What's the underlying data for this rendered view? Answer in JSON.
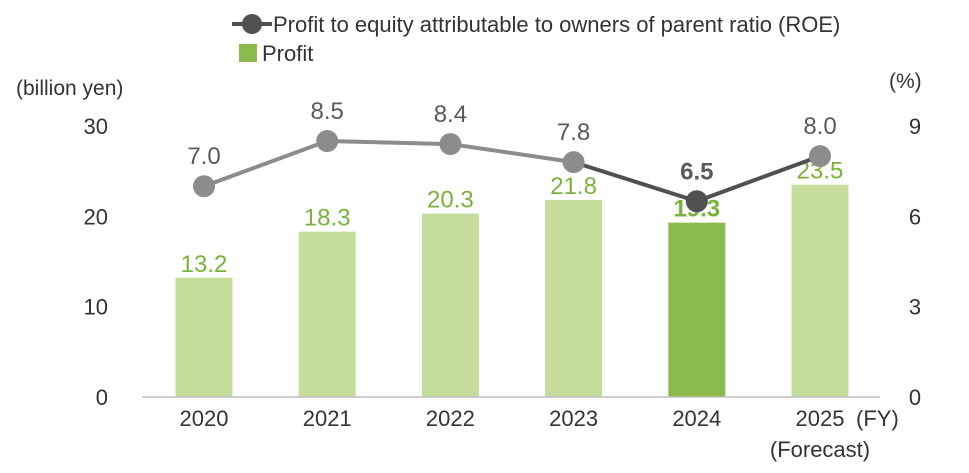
{
  "chart_data": {
    "type": "bar+line",
    "categories": [
      "2020",
      "2021",
      "2022",
      "2023",
      "2024",
      "2025"
    ],
    "fy_suffix": "(FY)",
    "forecast_note": "(Forecast)",
    "left_axis": {
      "label": "(billion yen)",
      "ticks": [
        "0",
        "10",
        "20",
        "30"
      ],
      "range": [
        0,
        30
      ]
    },
    "right_axis": {
      "label": "(%)",
      "ticks": [
        "0",
        "3",
        "6",
        "9"
      ],
      "range": [
        0,
        9
      ]
    },
    "series": [
      {
        "name": "Profit",
        "kind": "bar",
        "axis": "left",
        "values": [
          13.2,
          18.3,
          20.3,
          21.8,
          19.3,
          23.5
        ],
        "labels": [
          "13.2",
          "18.3",
          "20.3",
          "21.8",
          "19.3",
          "23.5"
        ],
        "color": "#c4dd9b",
        "highlight_color": "#8bbb4c",
        "label_color": "#7ab339",
        "highlight_index": 4
      },
      {
        "name": "Profit to equity attributable to owners of parent ratio (ROE)",
        "kind": "line",
        "axis": "right",
        "values": [
          7.0,
          8.5,
          8.4,
          7.8,
          6.5,
          8.0
        ],
        "labels": [
          "7.0",
          "8.5",
          "8.4",
          "7.8",
          "6.5",
          "8.0"
        ],
        "color": "#8c8c8c",
        "highlight_color": "#505050",
        "highlight_index": 4
      }
    ],
    "legend": [
      {
        "label": "Profit to equity attributable to owners of parent ratio (ROE)",
        "marker": "line-dot",
        "color": "#505050"
      },
      {
        "label": "Profit",
        "marker": "square",
        "color": "#8bbb4c"
      }
    ]
  }
}
